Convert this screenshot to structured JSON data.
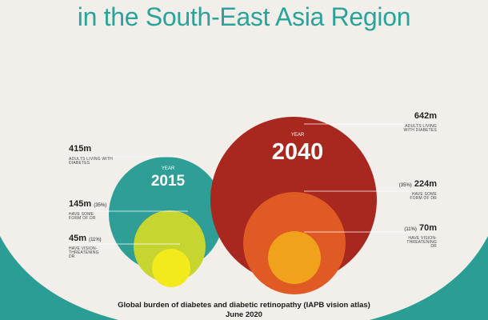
{
  "header": {
    "title": "in the South-East Asia Region"
  },
  "diagram": {
    "year_label": "YEAR",
    "y2015": {
      "year": "2015",
      "adults": {
        "value": "415m",
        "label": "ADULTS LIVING WITH DIABETES"
      },
      "some_dr": {
        "value": "145m",
        "pct": "(35%)",
        "label": "HAVE SOME FORM OF DR"
      },
      "vtdr": {
        "value": "45m",
        "pct": "(11%)",
        "label": "HAVE VISION-THREATENING DR"
      }
    },
    "y2040": {
      "year": "2040",
      "adults": {
        "value": "642m",
        "label": "ADULTS LIVING WITH DIABETES"
      },
      "some_dr": {
        "value": "224m",
        "pct": "(35%)",
        "label": "HAVE SOME FORM OF DR"
      },
      "vtdr": {
        "value": "70m",
        "pct": "(11%)",
        "label": "HAVE VISION-THREATENING DR"
      }
    },
    "colors": {
      "teal_band": "#2a9e94",
      "circle_2015_outer": "#2e9e96",
      "circle_2015_mid": "#c7d530",
      "circle_2015_inner": "#f2ea1a",
      "circle_2040_outer": "#a8281f",
      "circle_2040_mid": "#e05a24",
      "circle_2040_inner": "#f0a21c"
    }
  },
  "footer": {
    "line1": "Global burden of diabetes and diabetic retinopathy (IAPB vision atlas)",
    "line2": "June 2020"
  }
}
